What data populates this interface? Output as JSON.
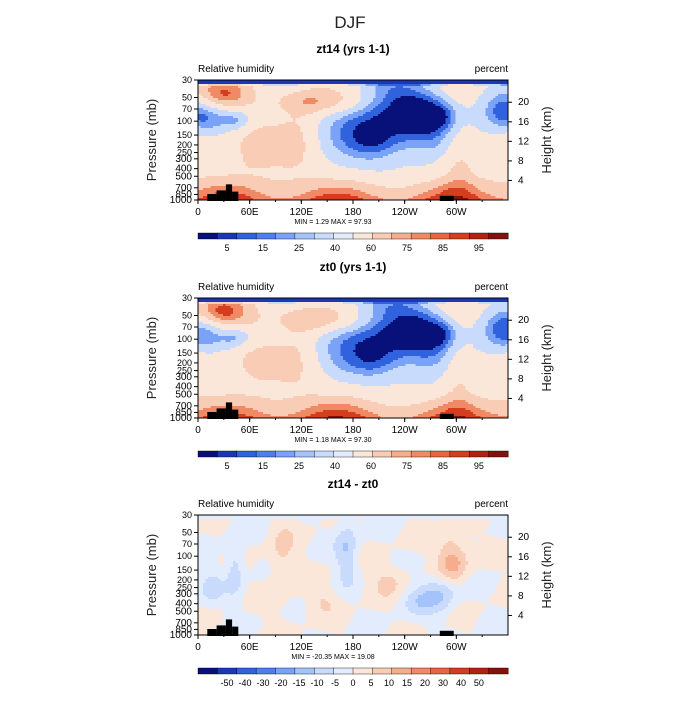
{
  "page_title": "DJF",
  "chart_data": [
    {
      "type": "heatmap",
      "title": "zt14 (yrs 1-1)",
      "left_label": "Relative humidity",
      "right_label": "percent",
      "ylabel": "Pressure (mb)",
      "y2label": "Height (km)",
      "x_ticks": [
        "0",
        "60E",
        "120E",
        "180",
        "120W",
        "60W"
      ],
      "y_ticks": [
        "30",
        "50",
        "70",
        "100",
        "150",
        "200",
        "250",
        "300",
        "400",
        "500",
        "700",
        "850",
        "1000"
      ],
      "y2_ticks": [
        "20",
        "16",
        "12",
        "8",
        "4"
      ],
      "stats": "MIN =    1.29   MAX =   97.93",
      "levels": [
        "5",
        "15",
        "25",
        "40",
        "60",
        "75",
        "85",
        "95"
      ],
      "palette": [
        "#08107a",
        "#1a37b8",
        "#2f62dc",
        "#4d7ff0",
        "#7aa3f7",
        "#a4c3fb",
        "#c8dbfd",
        "#e2ecfc",
        "#fbe6da",
        "#f9cdb5",
        "#f6ad8d",
        "#f08a64",
        "#e86540",
        "#d43d1d",
        "#b42012",
        "#82120b"
      ]
    },
    {
      "type": "heatmap",
      "title": "zt0 (yrs 1-1)",
      "left_label": "Relative humidity",
      "right_label": "percent",
      "ylabel": "Pressure (mb)",
      "y2label": "Height (km)",
      "x_ticks": [
        "0",
        "60E",
        "120E",
        "180",
        "120W",
        "60W"
      ],
      "y_ticks": [
        "30",
        "50",
        "70",
        "100",
        "150",
        "200",
        "250",
        "300",
        "400",
        "500",
        "700",
        "850",
        "1000"
      ],
      "y2_ticks": [
        "20",
        "16",
        "12",
        "8",
        "4"
      ],
      "stats": "MIN =    1.18   MAX =   97.30",
      "levels": [
        "5",
        "15",
        "25",
        "40",
        "60",
        "75",
        "85",
        "95"
      ],
      "palette": [
        "#08107a",
        "#1a37b8",
        "#2f62dc",
        "#4d7ff0",
        "#7aa3f7",
        "#a4c3fb",
        "#c8dbfd",
        "#e2ecfc",
        "#fbe6da",
        "#f9cdb5",
        "#f6ad8d",
        "#f08a64",
        "#e86540",
        "#d43d1d",
        "#b42012",
        "#82120b"
      ]
    },
    {
      "type": "heatmap",
      "title": "zt14 - zt0",
      "left_label": "Relative humidity",
      "right_label": "percent",
      "ylabel": "Pressure (mb)",
      "y2label": "Height (km)",
      "x_ticks": [
        "0",
        "60E",
        "120E",
        "180",
        "120W",
        "60W"
      ],
      "y_ticks": [
        "30",
        "50",
        "70",
        "100",
        "150",
        "200",
        "250",
        "300",
        "400",
        "500",
        "700",
        "850",
        "1000"
      ],
      "y2_ticks": [
        "20",
        "16",
        "12",
        "8",
        "4"
      ],
      "stats": "MIN =  -20.35   MAX =   19.08",
      "levels": [
        "-50",
        "-40",
        "-30",
        "-20",
        "-15",
        "-10",
        "-5",
        "0",
        "5",
        "10",
        "15",
        "20",
        "30",
        "40",
        "50"
      ],
      "palette": [
        "#08107a",
        "#1a37b8",
        "#2f62dc",
        "#4d7ff0",
        "#7aa3f7",
        "#a4c3fb",
        "#c8dbfd",
        "#e2ecfc",
        "#fbe6da",
        "#f9cdb5",
        "#f6ad8d",
        "#f08a64",
        "#e86540",
        "#d43d1d",
        "#b42012",
        "#82120b"
      ]
    }
  ]
}
